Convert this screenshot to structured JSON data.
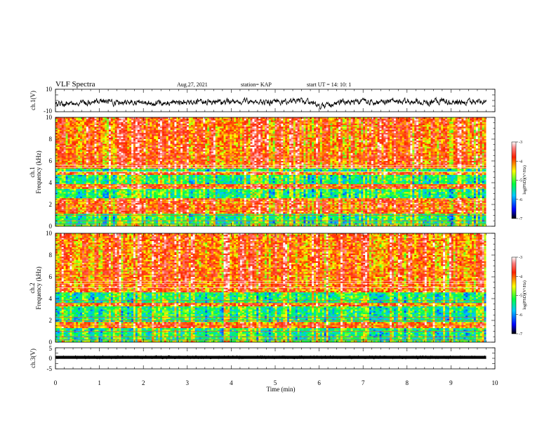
{
  "header": {
    "title": "VLF Spectra",
    "date": "Aug.27, 2021",
    "station": "station= KAP",
    "start_ut": "start  UT =   14: 10: 1"
  },
  "chart_data": [
    {
      "type": "line",
      "panel": "ch1-waveform",
      "ylabel": "ch.1(V)",
      "ylim": [
        -10,
        10
      ],
      "y_ticks": [
        "10",
        "-10"
      ],
      "xlim": [
        0,
        10
      ],
      "note_values": "noisy waveform fluctuating roughly between -9 and 6 V over 0-9.8 min"
    },
    {
      "type": "heatmap",
      "panel": "ch1-spectrogram",
      "ylabel": "ch.1\nFrequency (kHz)",
      "ylim": [
        0,
        10
      ],
      "y_ticks": [
        "0",
        "2",
        "4",
        "6",
        "8",
        "10"
      ],
      "xlim": [
        0,
        10
      ],
      "data_extent_min": 9.8,
      "colorbar": {
        "label": "log(PSD)(V²/Hz)",
        "range": [
          -7,
          -3
        ],
        "ticks": [
          "-3",
          "-4",
          "-5",
          "-6",
          "-7"
        ]
      },
      "bands_green_khz": [
        [
          0.2,
          1.1
        ],
        [
          2.6,
          3.4
        ],
        [
          3.9,
          4.7
        ],
        [
          5.0,
          5.3
        ]
      ]
    },
    {
      "type": "heatmap",
      "panel": "ch2-spectrogram",
      "ylabel": "ch.2\nFrequency (kHz)",
      "ylim": [
        0,
        10
      ],
      "y_ticks": [
        "0",
        "2",
        "4",
        "6",
        "8",
        "10"
      ],
      "xlim": [
        0,
        10
      ],
      "data_extent_min": 9.8,
      "colorbar": {
        "label": "log(PSD)(V²/Hz)",
        "range": [
          -7,
          -3
        ],
        "ticks": [
          "-3",
          "-4",
          "-5",
          "-6",
          "-7"
        ]
      },
      "bands_green_khz": [
        [
          0.2,
          1.3
        ],
        [
          1.8,
          3.3
        ],
        [
          3.6,
          4.6
        ]
      ]
    },
    {
      "type": "line",
      "panel": "ch3-waveform",
      "ylabel": "ch.3(V)",
      "ylim": [
        -5,
        5
      ],
      "y_ticks": [
        "5",
        "0",
        "-5"
      ],
      "xlim": [
        0,
        10
      ],
      "level_v": 0.5,
      "note_values": "near-constant thick trace around 0.5 V"
    }
  ],
  "x_axis": {
    "label": "Time (min)",
    "ticks": [
      "0",
      "1",
      "2",
      "3",
      "4",
      "5",
      "6",
      "7",
      "8",
      "9",
      "10"
    ]
  }
}
